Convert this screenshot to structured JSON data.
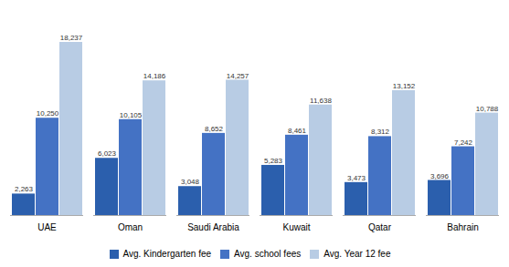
{
  "chart_data": {
    "type": "bar",
    "categories": [
      "UAE",
      "Oman",
      "Saudi Arabia",
      "Kuwait",
      "Qatar",
      "Bahrain"
    ],
    "series": [
      {
        "name": "Avg. Kindergarten fee",
        "color": "#2B5FAD",
        "values": [
          2263,
          6023,
          3048,
          5283,
          3473,
          3696
        ],
        "value_labels": [
          "2,263",
          "6,023",
          "3,048",
          "5,283",
          "3,473",
          "3,696"
        ]
      },
      {
        "name": "Avg. school fees",
        "color": "#4472C4",
        "values": [
          10250,
          10105,
          8652,
          8461,
          8312,
          7242
        ],
        "value_labels": [
          "10,250",
          "10,105",
          "8,652",
          "8,461",
          "8,312",
          "7,242"
        ]
      },
      {
        "name": "Avg. Year 12 fee",
        "color": "#B8CCE4",
        "values": [
          18237,
          14186,
          14257,
          11638,
          13152,
          10788
        ],
        "value_labels": [
          "18,237",
          "14,186",
          "14,257",
          "11,638",
          "13,152",
          "10,788"
        ]
      }
    ],
    "ylim": [
      0,
      21500
    ],
    "grid": false,
    "legend": "bottom",
    "data_labels": true,
    "tick_labels": "x"
  }
}
